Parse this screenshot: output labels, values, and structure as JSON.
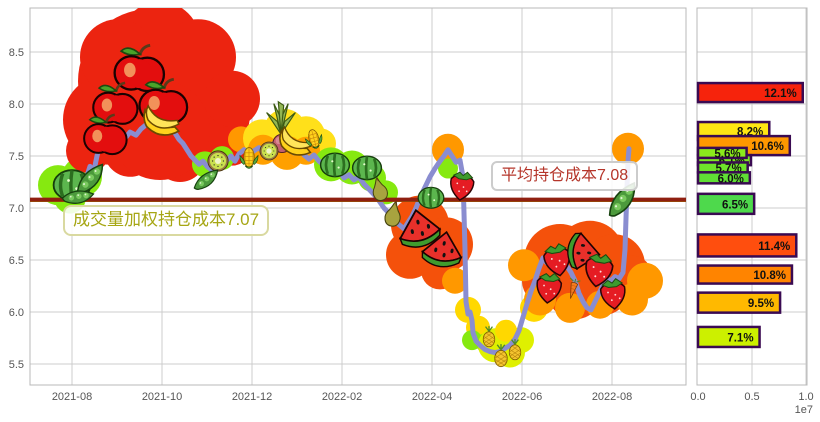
{
  "chart_data": {
    "type": "line",
    "title": "",
    "main_panel": {
      "y_tick_labels": [
        "8.5",
        "8.0",
        "7.5",
        "7.0",
        "6.5",
        "6.0",
        "5.5"
      ],
      "x_tick_labels": [
        "2021-08",
        "2021-10",
        "2021-12",
        "2022-02",
        "2022-04",
        "2022-06",
        "2022-08"
      ],
      "ylim": [
        5.3,
        8.9
      ],
      "grid": true,
      "price_line": {
        "color": "#8A8DD0",
        "points": [
          [
            76,
            7.1
          ],
          [
            79,
            7.22
          ],
          [
            82,
            7.32
          ],
          [
            86,
            7.28
          ],
          [
            90,
            7.4
          ],
          [
            94,
            7.36
          ],
          [
            97,
            7.5
          ],
          [
            100,
            7.62
          ],
          [
            104,
            7.58
          ],
          [
            108,
            7.63
          ],
          [
            112,
            7.6
          ],
          [
            116,
            7.66
          ],
          [
            120,
            7.7
          ],
          [
            125,
            7.67
          ],
          [
            130,
            7.73
          ],
          [
            136,
            7.7
          ],
          [
            141,
            7.76
          ],
          [
            146,
            7.8
          ],
          [
            152,
            7.83
          ],
          [
            158,
            7.86
          ],
          [
            163,
            7.8
          ],
          [
            167,
            7.82
          ],
          [
            171,
            7.75
          ],
          [
            175,
            7.72
          ],
          [
            179,
            7.66
          ],
          [
            183,
            7.62
          ],
          [
            187,
            7.56
          ],
          [
            191,
            7.5
          ],
          [
            195,
            7.46
          ],
          [
            199,
            7.42
          ],
          [
            203,
            7.45
          ],
          [
            207,
            7.4
          ],
          [
            211,
            7.37
          ],
          [
            215,
            7.42
          ],
          [
            219,
            7.45
          ],
          [
            223,
            7.4
          ],
          [
            227,
            7.46
          ],
          [
            231,
            7.5
          ],
          [
            235,
            7.45
          ],
          [
            239,
            7.52
          ],
          [
            244,
            7.56
          ],
          [
            249,
            7.51
          ],
          [
            254,
            7.55
          ],
          [
            259,
            7.58
          ],
          [
            264,
            7.53
          ],
          [
            269,
            7.6
          ],
          [
            274,
            7.62
          ],
          [
            279,
            7.57
          ],
          [
            284,
            7.62
          ],
          [
            289,
            7.57
          ],
          [
            294,
            7.53
          ],
          [
            299,
            7.57
          ],
          [
            304,
            7.51
          ],
          [
            309,
            7.47
          ],
          [
            314,
            7.51
          ],
          [
            319,
            7.45
          ],
          [
            324,
            7.41
          ],
          [
            329,
            7.37
          ],
          [
            334,
            7.32
          ],
          [
            339,
            7.35
          ],
          [
            344,
            7.29
          ],
          [
            349,
            7.32
          ],
          [
            354,
            7.27
          ],
          [
            359,
            7.3
          ],
          [
            364,
            7.23
          ],
          [
            369,
            7.18
          ],
          [
            374,
            7.13
          ],
          [
            379,
            7.07
          ],
          [
            384,
            7.0
          ],
          [
            389,
            6.95
          ],
          [
            394,
            6.88
          ],
          [
            399,
            6.84
          ],
          [
            404,
            6.8
          ],
          [
            408,
            6.86
          ],
          [
            412,
            6.92
          ],
          [
            416,
            7.0
          ],
          [
            420,
            7.1
          ],
          [
            425,
            7.2
          ],
          [
            430,
            7.3
          ],
          [
            435,
            7.38
          ],
          [
            440,
            7.45
          ],
          [
            444,
            7.5
          ],
          [
            448,
            7.56
          ],
          [
            452,
            7.5
          ],
          [
            456,
            7.44
          ],
          [
            460,
            7.46
          ],
          [
            463,
            7.3
          ],
          [
            465,
            6.6
          ],
          [
            466,
            6.1
          ],
          [
            468,
            5.98
          ],
          [
            470,
            6.0
          ],
          [
            472,
            5.92
          ],
          [
            473,
            5.8
          ],
          [
            476,
            5.72
          ],
          [
            480,
            5.68
          ],
          [
            485,
            5.64
          ],
          [
            490,
            5.62
          ],
          [
            495,
            5.61
          ],
          [
            500,
            5.62
          ],
          [
            505,
            5.65
          ],
          [
            510,
            5.68
          ],
          [
            515,
            5.74
          ],
          [
            519,
            5.82
          ],
          [
            523,
            5.95
          ],
          [
            527,
            6.08
          ],
          [
            531,
            6.2
          ],
          [
            535,
            6.3
          ],
          [
            539,
            6.42
          ],
          [
            543,
            6.52
          ],
          [
            547,
            6.47
          ],
          [
            551,
            6.55
          ],
          [
            555,
            6.5
          ],
          [
            559,
            6.55
          ],
          [
            563,
            6.48
          ],
          [
            567,
            6.44
          ],
          [
            571,
            6.38
          ],
          [
            575,
            6.3
          ],
          [
            579,
            6.18
          ],
          [
            583,
            6.1
          ],
          [
            587,
            6.04
          ],
          [
            591,
            6.02
          ],
          [
            595,
            6.1
          ],
          [
            599,
            6.18
          ],
          [
            603,
            6.26
          ],
          [
            607,
            6.32
          ],
          [
            611,
            6.3
          ],
          [
            615,
            6.34
          ],
          [
            619,
            6.32
          ],
          [
            623,
            6.38
          ],
          [
            625,
            6.6
          ],
          [
            626,
            6.9
          ],
          [
            627,
            7.2
          ],
          [
            628,
            7.45
          ],
          [
            629,
            7.57
          ]
        ]
      },
      "avg_cost_line": {
        "value": 7.08,
        "color": "#8F1F10",
        "label": "平均持仓成本7.08"
      },
      "vwap_cost_line": {
        "value": 7.07,
        "color": "#A08000",
        "label": "成交量加权持仓成本7.07"
      },
      "bubbles": [
        [
          58,
          7.22,
          20,
          "#86E910"
        ],
        [
          82,
          7.3,
          20,
          "#86E910"
        ],
        [
          70,
          7.1,
          16,
          "#86E910"
        ],
        [
          150,
          8.22,
          72,
          "#EC2410"
        ],
        [
          108,
          7.85,
          45,
          "#EC2410"
        ],
        [
          205,
          7.9,
          45,
          "#EC2410"
        ],
        [
          160,
          8.6,
          40,
          "#EC2410"
        ],
        [
          118,
          8.45,
          38,
          "#EC2410"
        ],
        [
          198,
          8.45,
          38,
          "#EC2410"
        ],
        [
          232,
          8.05,
          28,
          "#EC2410"
        ],
        [
          88,
          7.55,
          22,
          "#EC2410"
        ],
        [
          232,
          7.6,
          20,
          "#EC2410"
        ],
        [
          130,
          7.55,
          26,
          "#EC2410"
        ],
        [
          180,
          7.5,
          26,
          "#EC2410"
        ],
        [
          160,
          7.75,
          50,
          "#EC2410"
        ],
        [
          205,
          7.42,
          13,
          "#86E910"
        ],
        [
          222,
          7.48,
          12,
          "#86E910"
        ],
        [
          241,
          7.66,
          13,
          "#FF9800"
        ],
        [
          262,
          7.67,
          19,
          "#FFE01A"
        ],
        [
          285,
          7.75,
          21,
          "#FFE01A"
        ],
        [
          306,
          7.7,
          19,
          "#FFE01A"
        ],
        [
          321,
          7.62,
          15,
          "#FFE01A"
        ],
        [
          263,
          7.56,
          15,
          "#FFA000"
        ],
        [
          287,
          7.53,
          17,
          "#FFA000"
        ],
        [
          306,
          7.55,
          14,
          "#FFA000"
        ],
        [
          331,
          7.42,
          17,
          "#86E910"
        ],
        [
          352,
          7.39,
          17,
          "#86E910"
        ],
        [
          372,
          7.29,
          14,
          "#86E910"
        ],
        [
          386,
          7.15,
          12,
          "#86E910"
        ],
        [
          420,
          6.84,
          29,
          "#F4510B"
        ],
        [
          446,
          6.65,
          27,
          "#F4510B"
        ],
        [
          410,
          6.55,
          24,
          "#F4510B"
        ],
        [
          440,
          6.4,
          19,
          "#F4510B"
        ],
        [
          448,
          7.56,
          16,
          "#FF9800"
        ],
        [
          448,
          7.38,
          10,
          "#86E910"
        ],
        [
          455,
          6.3,
          13,
          "#FF9800"
        ],
        [
          468,
          6.02,
          13,
          "#FFD800"
        ],
        [
          478,
          5.85,
          12,
          "#FFD800"
        ],
        [
          472,
          5.73,
          10,
          "#86E910"
        ],
        [
          486,
          5.7,
          10,
          "#86E910"
        ],
        [
          495,
          5.68,
          17,
          "#DFF000"
        ],
        [
          510,
          5.61,
          15,
          "#DFF000"
        ],
        [
          521,
          5.73,
          13,
          "#DFF000"
        ],
        [
          506,
          5.82,
          11,
          "#FFD800"
        ],
        [
          534,
          6.04,
          14,
          "#FFD800"
        ],
        [
          560,
          6.5,
          36,
          "#F4510B"
        ],
        [
          590,
          6.55,
          34,
          "#F4510B"
        ],
        [
          614,
          6.45,
          31,
          "#F4510B"
        ],
        [
          575,
          6.2,
          28,
          "#F4510B"
        ],
        [
          603,
          6.22,
          26,
          "#F4510B"
        ],
        [
          546,
          6.3,
          24,
          "#F4510B"
        ],
        [
          632,
          6.35,
          20,
          "#F4510B"
        ],
        [
          540,
          6.12,
          16,
          "#FF9800"
        ],
        [
          570,
          6.04,
          15,
          "#FF9800"
        ],
        [
          600,
          6.07,
          14,
          "#FF9800"
        ],
        [
          632,
          6.12,
          16,
          "#FF9800"
        ],
        [
          645,
          6.3,
          18,
          "#FF9800"
        ],
        [
          524,
          6.45,
          16,
          "#FF9800"
        ],
        [
          628,
          7.57,
          16,
          "#FF9800"
        ]
      ],
      "fruits": [
        [
          "watermelon",
          72,
          184,
          46,
          0
        ],
        [
          "peas",
          90,
          178,
          40,
          -25
        ],
        [
          "peas",
          78,
          196,
          34,
          15
        ],
        [
          "apple",
          140,
          70,
          58,
          0
        ],
        [
          "apple",
          116,
          105,
          52,
          0
        ],
        [
          "apple",
          164,
          103,
          56,
          0
        ],
        [
          "apple",
          106,
          136,
          50,
          0
        ],
        [
          "banana",
          162,
          120,
          46,
          10
        ],
        [
          "kiwi",
          218,
          161,
          27,
          0
        ],
        [
          "peas",
          206,
          179,
          32,
          -15
        ],
        [
          "corn",
          249,
          158,
          26,
          0
        ],
        [
          "pineapple-top",
          281,
          118,
          36,
          0
        ],
        [
          "plum",
          282,
          142,
          28,
          0
        ],
        [
          "kiwi",
          269,
          151,
          24,
          0
        ],
        [
          "banana",
          296,
          141,
          42,
          15
        ],
        [
          "corn",
          314,
          139,
          24,
          -15
        ],
        [
          "watermelon",
          335,
          164,
          36,
          0
        ],
        [
          "watermelon",
          367,
          167,
          36,
          0
        ],
        [
          "pear",
          380,
          189,
          27,
          -15
        ],
        [
          "pear",
          394,
          214,
          29,
          10
        ],
        [
          "watermelon",
          431,
          197,
          32,
          0
        ],
        [
          "watermelon-slice",
          419,
          228,
          48,
          -10
        ],
        [
          "watermelon-slice",
          443,
          249,
          46,
          12
        ],
        [
          "strawberry",
          462,
          184,
          38,
          8
        ],
        [
          "pineapple",
          489,
          337,
          23,
          0
        ],
        [
          "pineapple",
          501,
          356,
          25,
          0
        ],
        [
          "pineapple",
          515,
          350,
          23,
          0
        ],
        [
          "strawberry",
          557,
          258,
          42,
          -10
        ],
        [
          "strawberry",
          549,
          286,
          40,
          6
        ],
        [
          "watermelon-slice",
          584,
          252,
          42,
          100
        ],
        [
          "carrot",
          573,
          289,
          22,
          15
        ],
        [
          "strawberry",
          599,
          268,
          44,
          10
        ],
        [
          "strawberry",
          613,
          292,
          40,
          -6
        ],
        [
          "peas",
          622,
          199,
          44,
          -30
        ]
      ]
    },
    "histogram_panel": {
      "x_tick_labels": [
        "0.0",
        "0.5",
        "1.0"
      ],
      "x_unit_label": "1e7",
      "xlim": [
        0,
        10000000
      ],
      "bar_border_color": "#3A0A52",
      "bars": [
        {
          "label": "12.1%",
          "price": 8.11,
          "value": 9700000,
          "color": "#F6230C",
          "h": 19
        },
        {
          "label": "8.2%",
          "price": 7.74,
          "value": 6600000,
          "color": "#FFE613",
          "h": 18
        },
        {
          "label": "10.6%",
          "price": 7.6,
          "value": 8500000,
          "color": "#FF9800",
          "h": 19
        },
        {
          "label": "6.1%",
          "price": 7.46,
          "value": 4900000,
          "color": "#7CE722",
          "h": 10
        },
        {
          "label": "5.6%",
          "price": 7.53,
          "value": 4500000,
          "color": "#8BEA1C",
          "h": 10
        },
        {
          "label": "5.7%",
          "price": 7.39,
          "value": 4600000,
          "color": "#6FE32A",
          "h": 10
        },
        {
          "label": "6.0%",
          "price": 7.29,
          "value": 4800000,
          "color": "#60DE35",
          "h": 11
        },
        {
          "label": "6.5%",
          "price": 7.04,
          "value": 5200000,
          "color": "#4ED94C",
          "h": 20
        },
        {
          "label": "11.4%",
          "price": 6.64,
          "value": 9100000,
          "color": "#FF4E0E",
          "h": 22
        },
        {
          "label": "10.8%",
          "price": 6.36,
          "value": 8700000,
          "color": "#FF8400",
          "h": 18
        },
        {
          "label": "9.5%",
          "price": 6.09,
          "value": 7600000,
          "color": "#FFB900",
          "h": 20
        },
        {
          "label": "7.1%",
          "price": 5.76,
          "value": 5700000,
          "color": "#CCF000",
          "h": 20
        }
      ]
    }
  }
}
